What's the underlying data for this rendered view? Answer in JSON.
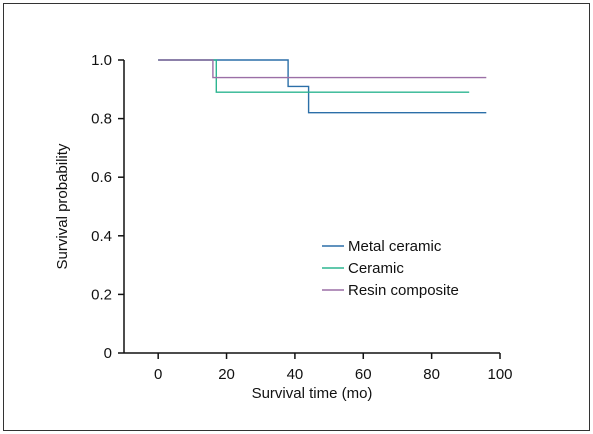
{
  "chart_data": {
    "type": "line",
    "step": true,
    "title": "",
    "xlabel": "Survival time (mo)",
    "ylabel": "Survival probability",
    "xlim": [
      -10,
      100
    ],
    "ylim": [
      0,
      1.0
    ],
    "x_ticks": [
      0,
      20,
      40,
      60,
      80,
      100
    ],
    "x_tick_labels": [
      "0",
      "20",
      "40",
      "60",
      "80",
      "100"
    ],
    "y_ticks": [
      0,
      0.2,
      0.4,
      0.6,
      0.8,
      1.0
    ],
    "y_tick_labels": [
      "0",
      "0.2",
      "0.4",
      "0.6",
      "0.8",
      "1.0"
    ],
    "grid": false,
    "legend_position": "center-right",
    "series": [
      {
        "name": "Metal ceramic",
        "color": "#2b6fa8",
        "x": [
          0,
          38,
          38,
          44,
          44,
          96
        ],
        "y": [
          1.0,
          1.0,
          0.91,
          0.91,
          0.82,
          0.82
        ]
      },
      {
        "name": "Ceramic",
        "color": "#2db591",
        "x": [
          0,
          17,
          17,
          91
        ],
        "y": [
          1.0,
          1.0,
          0.89,
          0.89
        ]
      },
      {
        "name": "Resin composite",
        "color": "#9b6fa6",
        "x": [
          0,
          16,
          16,
          96
        ],
        "y": [
          1.0,
          1.0,
          0.94,
          0.94
        ]
      }
    ]
  }
}
